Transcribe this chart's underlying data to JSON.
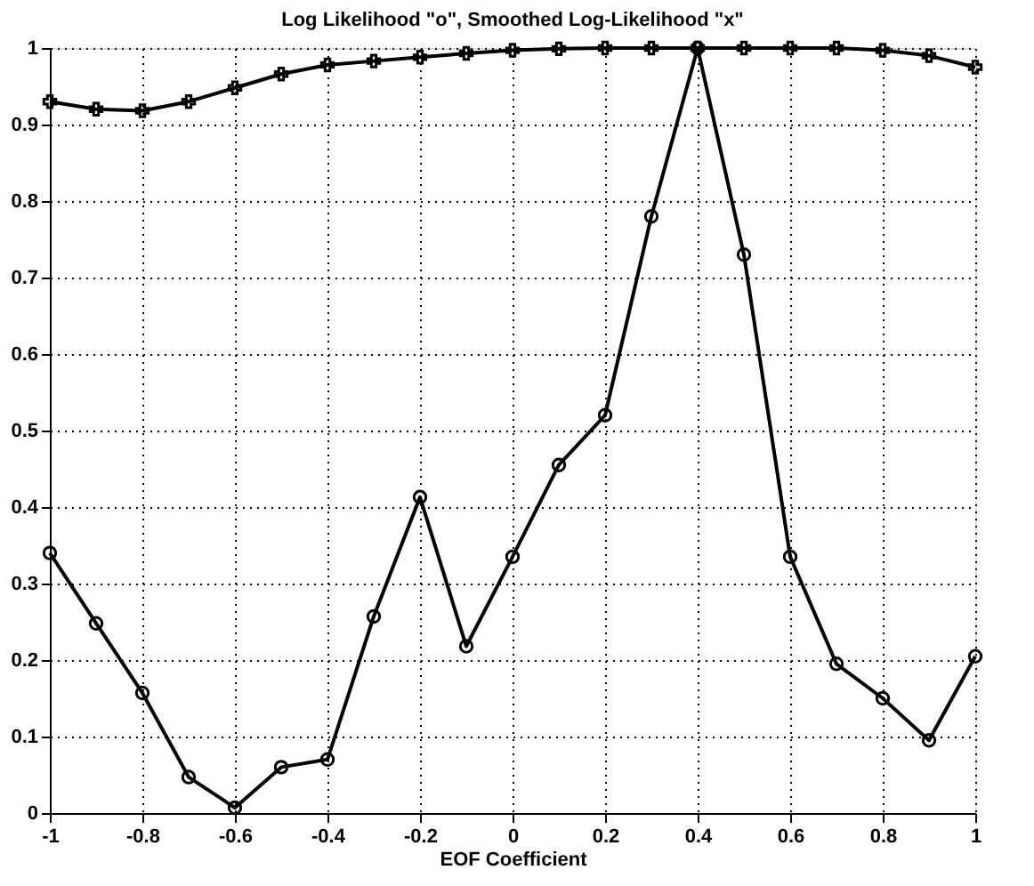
{
  "chart_data": {
    "type": "line",
    "title": "Log Likelihood \"o\", Smoothed Log-Likelihood \"x\"",
    "xlabel": "EOF Coefficient",
    "x": [
      -1,
      -0.9,
      -0.8,
      -0.7,
      -0.6,
      -0.5,
      -0.4,
      -0.3,
      -0.2,
      -0.1,
      0,
      0.1,
      0.2,
      0.3,
      0.4,
      0.5,
      0.6,
      0.7,
      0.8,
      0.9,
      1
    ],
    "series": [
      {
        "color": "#000000",
        "marker": "circle",
        "values": [
          0.34,
          0.248,
          0.157,
          0.047,
          0.007,
          0.06,
          0.07,
          0.257,
          0.413,
          0.218,
          0.335,
          0.455,
          0.52,
          0.78,
          1.0,
          0.73,
          0.335,
          0.195,
          0.15,
          0.095,
          0.205
        ]
      },
      {
        "color": "#000000",
        "marker": "cross",
        "values": [
          0.93,
          0.92,
          0.918,
          0.93,
          0.948,
          0.966,
          0.978,
          0.983,
          0.988,
          0.993,
          0.997,
          0.999,
          1,
          1,
          1,
          1,
          1,
          1,
          0.997,
          0.99,
          0.975
        ]
      }
    ],
    "xlim": [
      -1,
      1
    ],
    "xticks": [
      -1,
      -0.8,
      -0.6,
      -0.4,
      -0.2,
      0,
      0.2,
      0.4,
      0.6,
      0.8,
      1
    ],
    "ylim": [
      0,
      1
    ],
    "yticks": [
      0,
      0.1,
      0.2,
      0.3,
      0.4,
      0.5,
      0.6,
      0.7,
      0.8,
      0.9,
      1
    ],
    "grid": true,
    "line_style": "solid"
  }
}
